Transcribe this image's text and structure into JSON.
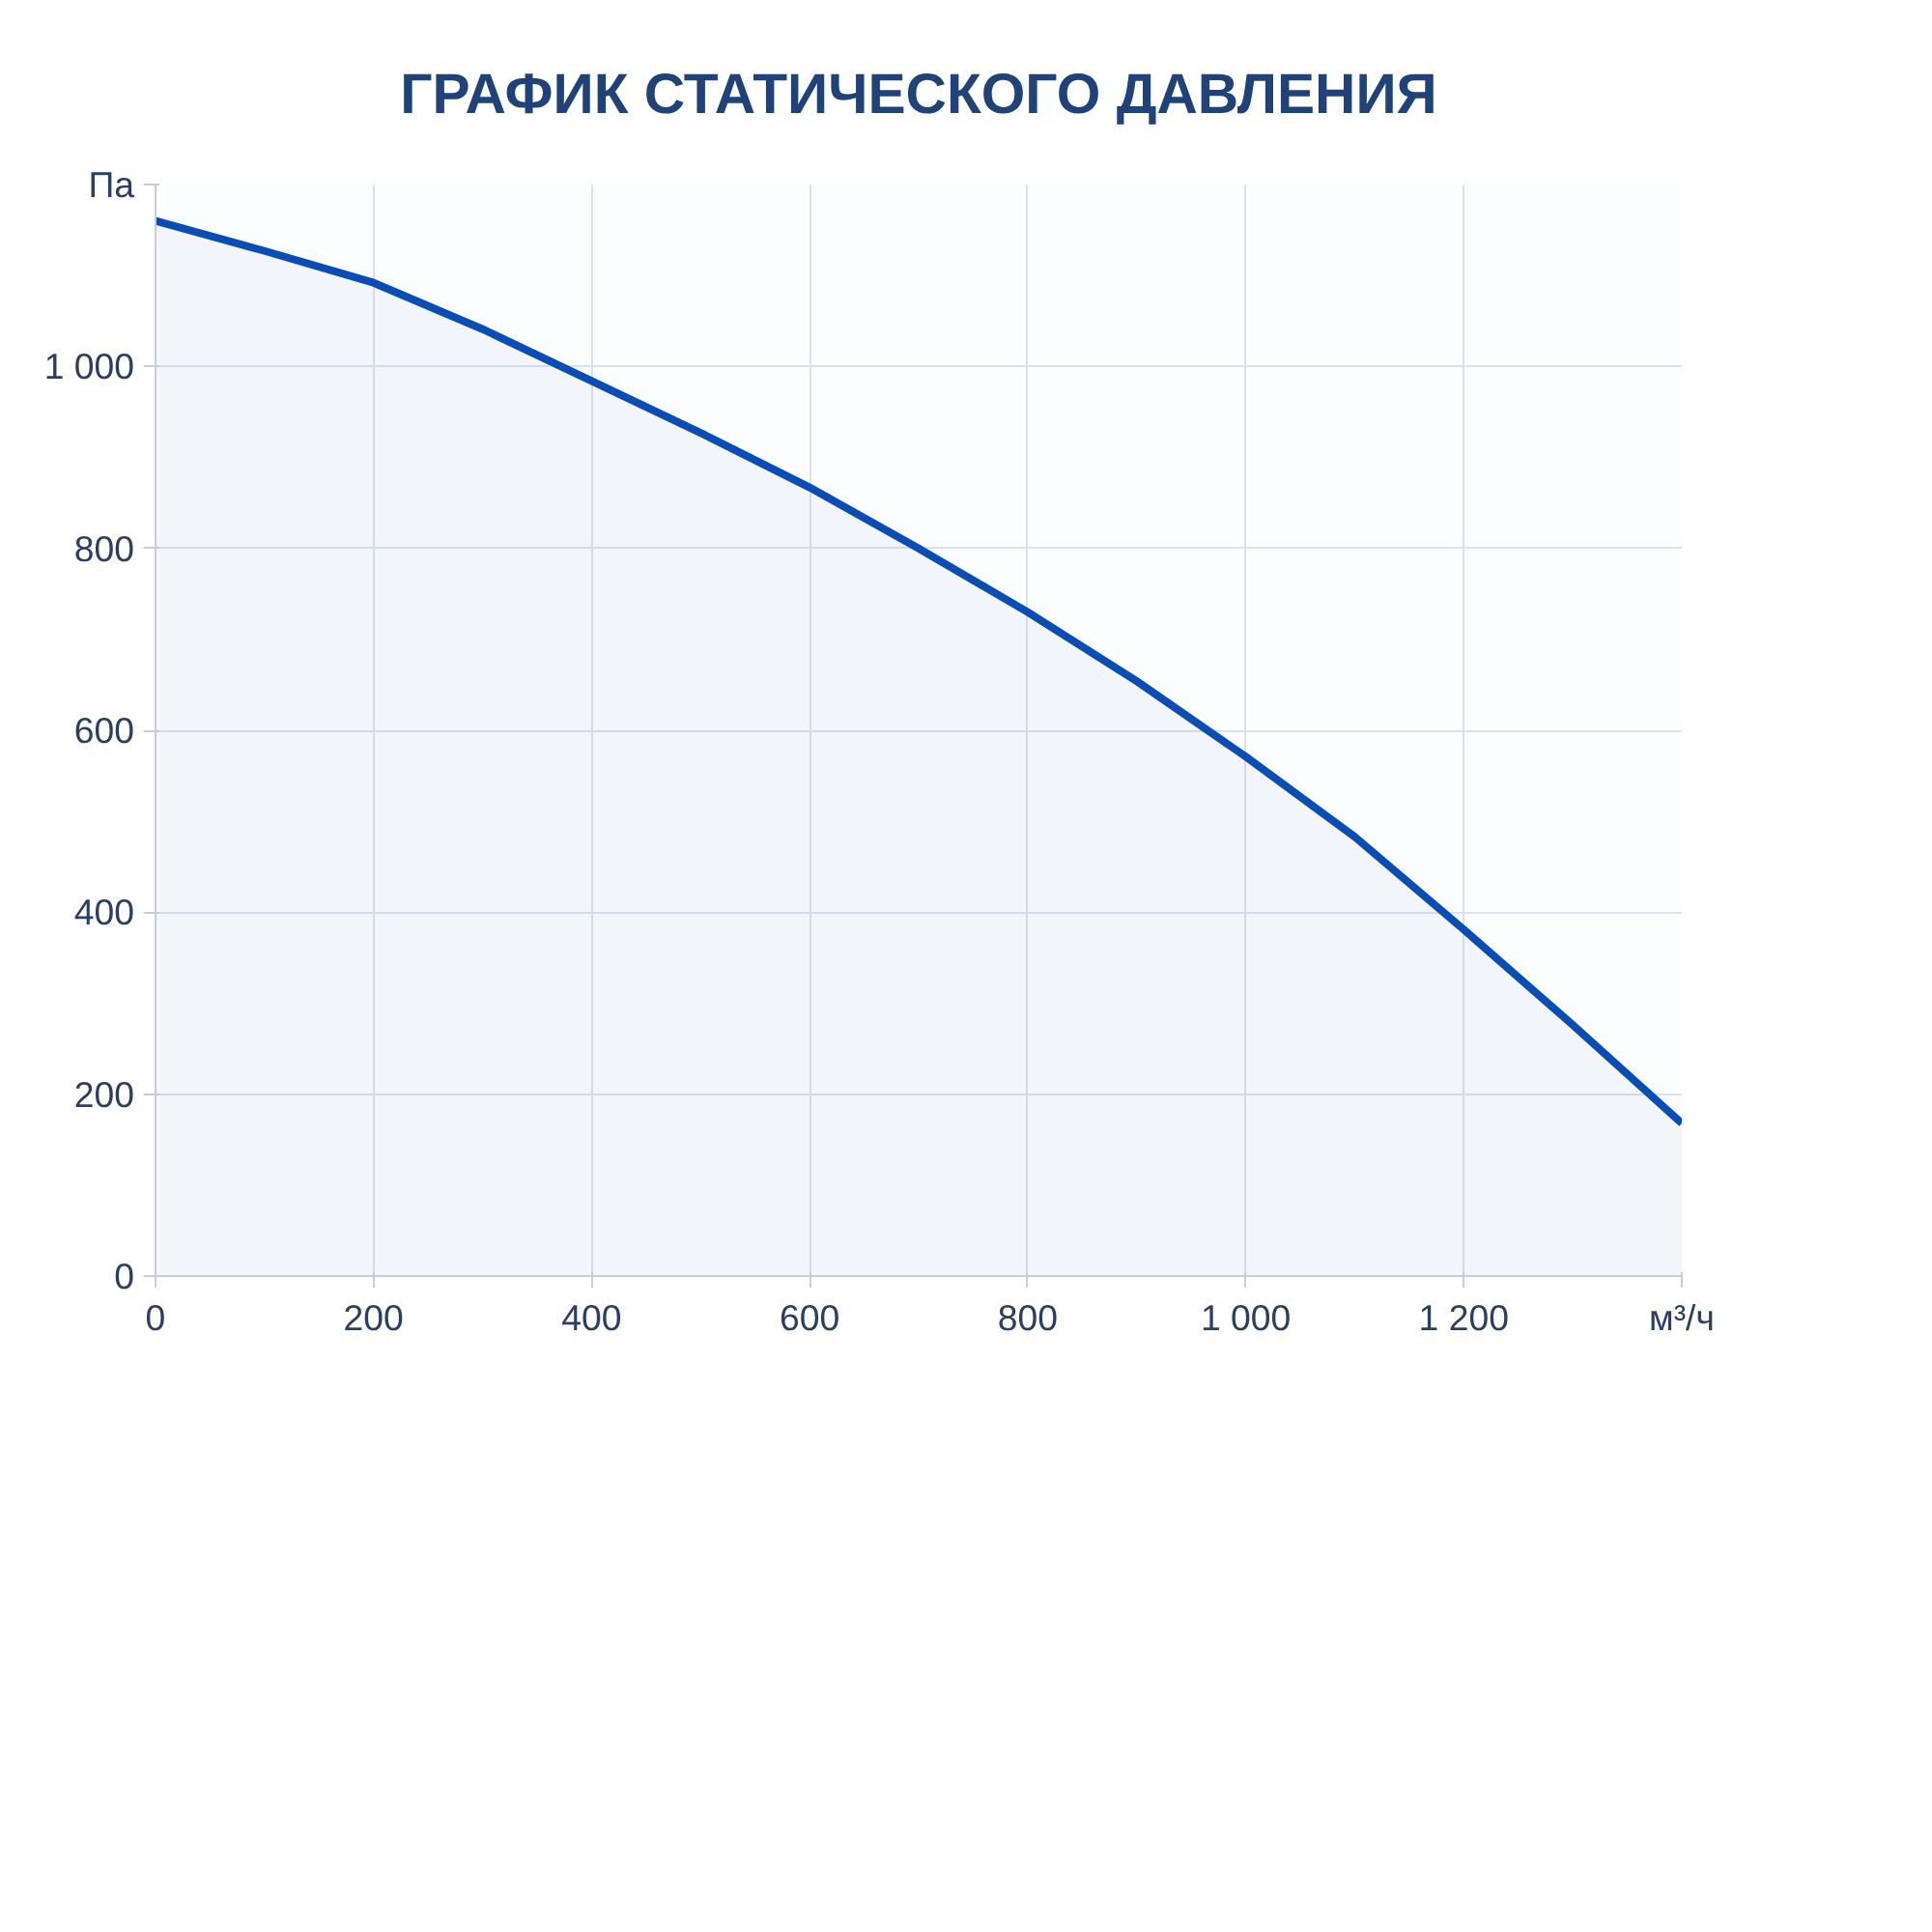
{
  "chart_data": {
    "type": "area",
    "title": "ГРАФИК СТАТИЧЕСКОГО ДАВЛЕНИЯ",
    "x": [
      0,
      100,
      200,
      300,
      400,
      500,
      600,
      700,
      800,
      900,
      1000,
      1100,
      1200,
      1300,
      1400
    ],
    "series": [
      {
        "color": "#0a4db5",
        "values": [
          1160,
          1127,
          1092,
          1041,
          984,
          927,
          867,
          800,
          730,
          654,
          571,
          483,
          381,
          276,
          168
        ]
      }
    ],
    "xlim": [
      0,
      1400
    ],
    "ylim": [
      0,
      1200
    ],
    "xticks": [
      0,
      200,
      400,
      600,
      800,
      {
        "value": 1000,
        "label": "1 000"
      },
      {
        "value": 1200,
        "label": "1 200"
      },
      {
        "value": 1400,
        "label": "м³/ч"
      }
    ],
    "yticks": [
      0,
      200,
      400,
      600,
      800,
      {
        "value": 1000,
        "label": "1 000"
      },
      {
        "value": 1200,
        "label": "Па"
      }
    ],
    "grid": true
  }
}
